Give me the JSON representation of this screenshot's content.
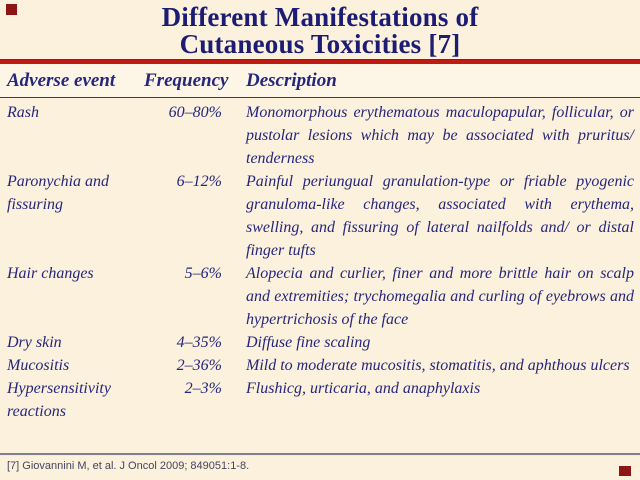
{
  "slide": {
    "title_lines": [
      "Different Manifestations of",
      "Cutaneous Toxicities [7]"
    ],
    "footer": "[7] Giovannini M, et al. J Oncol 2009; 849051:1-8.",
    "colors": {
      "background": "#FBF1DC",
      "header_band": "#FDF5E6",
      "title_text": "#1C1C74",
      "body_text": "#26267D",
      "accent_red": "#C11A12",
      "corner_accent": "#8E1515",
      "line_dark": "#3A3A66",
      "line_gray": "#80808E",
      "footer_text": "#45455F"
    }
  },
  "table": {
    "columns": [
      "Adverse event",
      "Frequency",
      "Description"
    ],
    "rows": [
      {
        "event": "Rash",
        "frequency": "60–80%",
        "description": "Monomorphous erythematous maculopapular, follicular, or pustolar lesions which may be associated with pruritus/ tenderness"
      },
      {
        "event": "Paronychia and fissuring",
        "frequency": "6–12%",
        "description": "Painful periungual granulation-type or friable pyogenic granuloma-like changes, associated with erythema, swelling, and fissuring of lateral nailfolds and/ or distal finger tufts"
      },
      {
        "event": "Hair changes",
        "frequency": "5–6%",
        "description": "Alopecia and curlier, finer and more brittle hair on scalp and extremities; trychomegalia and curling of eyebrows and hypertrichosis of the face"
      },
      {
        "event": "Dry skin",
        "frequency": "4–35%",
        "description": "Diffuse fine scaling"
      },
      {
        "event": "Mucositis",
        "frequency": "2–36%",
        "description": "Mild to moderate mucositis, stomatitis, and aphthous ulcers"
      },
      {
        "event": "Hypersensitivity reactions",
        "frequency": "2–3%",
        "description": "Flushicg, urticaria, and anaphylaxis"
      }
    ]
  }
}
